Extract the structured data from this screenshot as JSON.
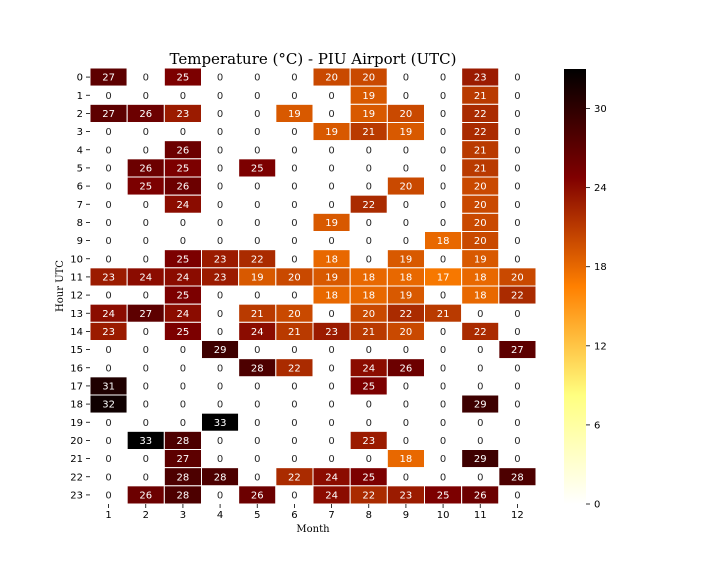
{
  "chart_data": {
    "type": "heatmap",
    "title": "Temperature (°C) - PIU Airport (UTC)",
    "xlabel": "Month",
    "ylabel": "Hour UTC",
    "x_categories": [
      "1",
      "2",
      "3",
      "4",
      "5",
      "6",
      "7",
      "8",
      "9",
      "10",
      "11",
      "12"
    ],
    "y_categories": [
      "0",
      "1",
      "2",
      "3",
      "4",
      "5",
      "6",
      "7",
      "8",
      "9",
      "10",
      "11",
      "12",
      "13",
      "14",
      "15",
      "16",
      "17",
      "18",
      "19",
      "20",
      "21",
      "22",
      "23"
    ],
    "values": [
      [
        27,
        0,
        25,
        0,
        0,
        0,
        20,
        20,
        0,
        0,
        23,
        0
      ],
      [
        0,
        0,
        0,
        0,
        0,
        0,
        0,
        19,
        0,
        0,
        21,
        0
      ],
      [
        27,
        26,
        23,
        0,
        0,
        19,
        0,
        19,
        20,
        0,
        22,
        0
      ],
      [
        0,
        0,
        0,
        0,
        0,
        0,
        19,
        21,
        19,
        0,
        22,
        0
      ],
      [
        0,
        0,
        26,
        0,
        0,
        0,
        0,
        0,
        0,
        0,
        21,
        0
      ],
      [
        0,
        26,
        25,
        0,
        25,
        0,
        0,
        0,
        0,
        0,
        21,
        0
      ],
      [
        0,
        25,
        26,
        0,
        0,
        0,
        0,
        0,
        20,
        0,
        20,
        0
      ],
      [
        0,
        0,
        24,
        0,
        0,
        0,
        0,
        22,
        0,
        0,
        20,
        0
      ],
      [
        0,
        0,
        0,
        0,
        0,
        0,
        19,
        0,
        0,
        0,
        20,
        0
      ],
      [
        0,
        0,
        0,
        0,
        0,
        0,
        0,
        0,
        0,
        18,
        20,
        0
      ],
      [
        0,
        0,
        25,
        23,
        22,
        0,
        18,
        0,
        19,
        0,
        19,
        0
      ],
      [
        23,
        24,
        24,
        23,
        19,
        20,
        19,
        18,
        18,
        17,
        18,
        20
      ],
      [
        0,
        0,
        25,
        0,
        0,
        0,
        18,
        18,
        19,
        0,
        18,
        22
      ],
      [
        24,
        27,
        24,
        0,
        21,
        20,
        0,
        20,
        22,
        21,
        0,
        0
      ],
      [
        23,
        0,
        25,
        0,
        24,
        21,
        23,
        21,
        20,
        0,
        22,
        0
      ],
      [
        0,
        0,
        0,
        29,
        0,
        0,
        0,
        0,
        0,
        0,
        0,
        27
      ],
      [
        0,
        0,
        0,
        0,
        28,
        22,
        0,
        24,
        26,
        0,
        0,
        0
      ],
      [
        31,
        0,
        0,
        0,
        0,
        0,
        0,
        25,
        0,
        0,
        0,
        0
      ],
      [
        32,
        0,
        0,
        0,
        0,
        0,
        0,
        0,
        0,
        0,
        29,
        0
      ],
      [
        0,
        0,
        0,
        33,
        0,
        0,
        0,
        0,
        0,
        0,
        0,
        0
      ],
      [
        0,
        33,
        28,
        0,
        0,
        0,
        0,
        23,
        0,
        0,
        0,
        0
      ],
      [
        0,
        0,
        27,
        0,
        0,
        0,
        0,
        0,
        18,
        0,
        29,
        0
      ],
      [
        0,
        0,
        28,
        28,
        0,
        22,
        24,
        25,
        0,
        0,
        0,
        28
      ],
      [
        0,
        26,
        28,
        0,
        26,
        0,
        24,
        22,
        23,
        25,
        26,
        0
      ]
    ],
    "colorbar": {
      "ticks": [
        "0",
        "6",
        "12",
        "18",
        "24",
        "30"
      ],
      "vmin": 0,
      "vmax": 33,
      "colormap": "afmhot_r"
    },
    "grid": true,
    "annotations": "cell values shown"
  }
}
